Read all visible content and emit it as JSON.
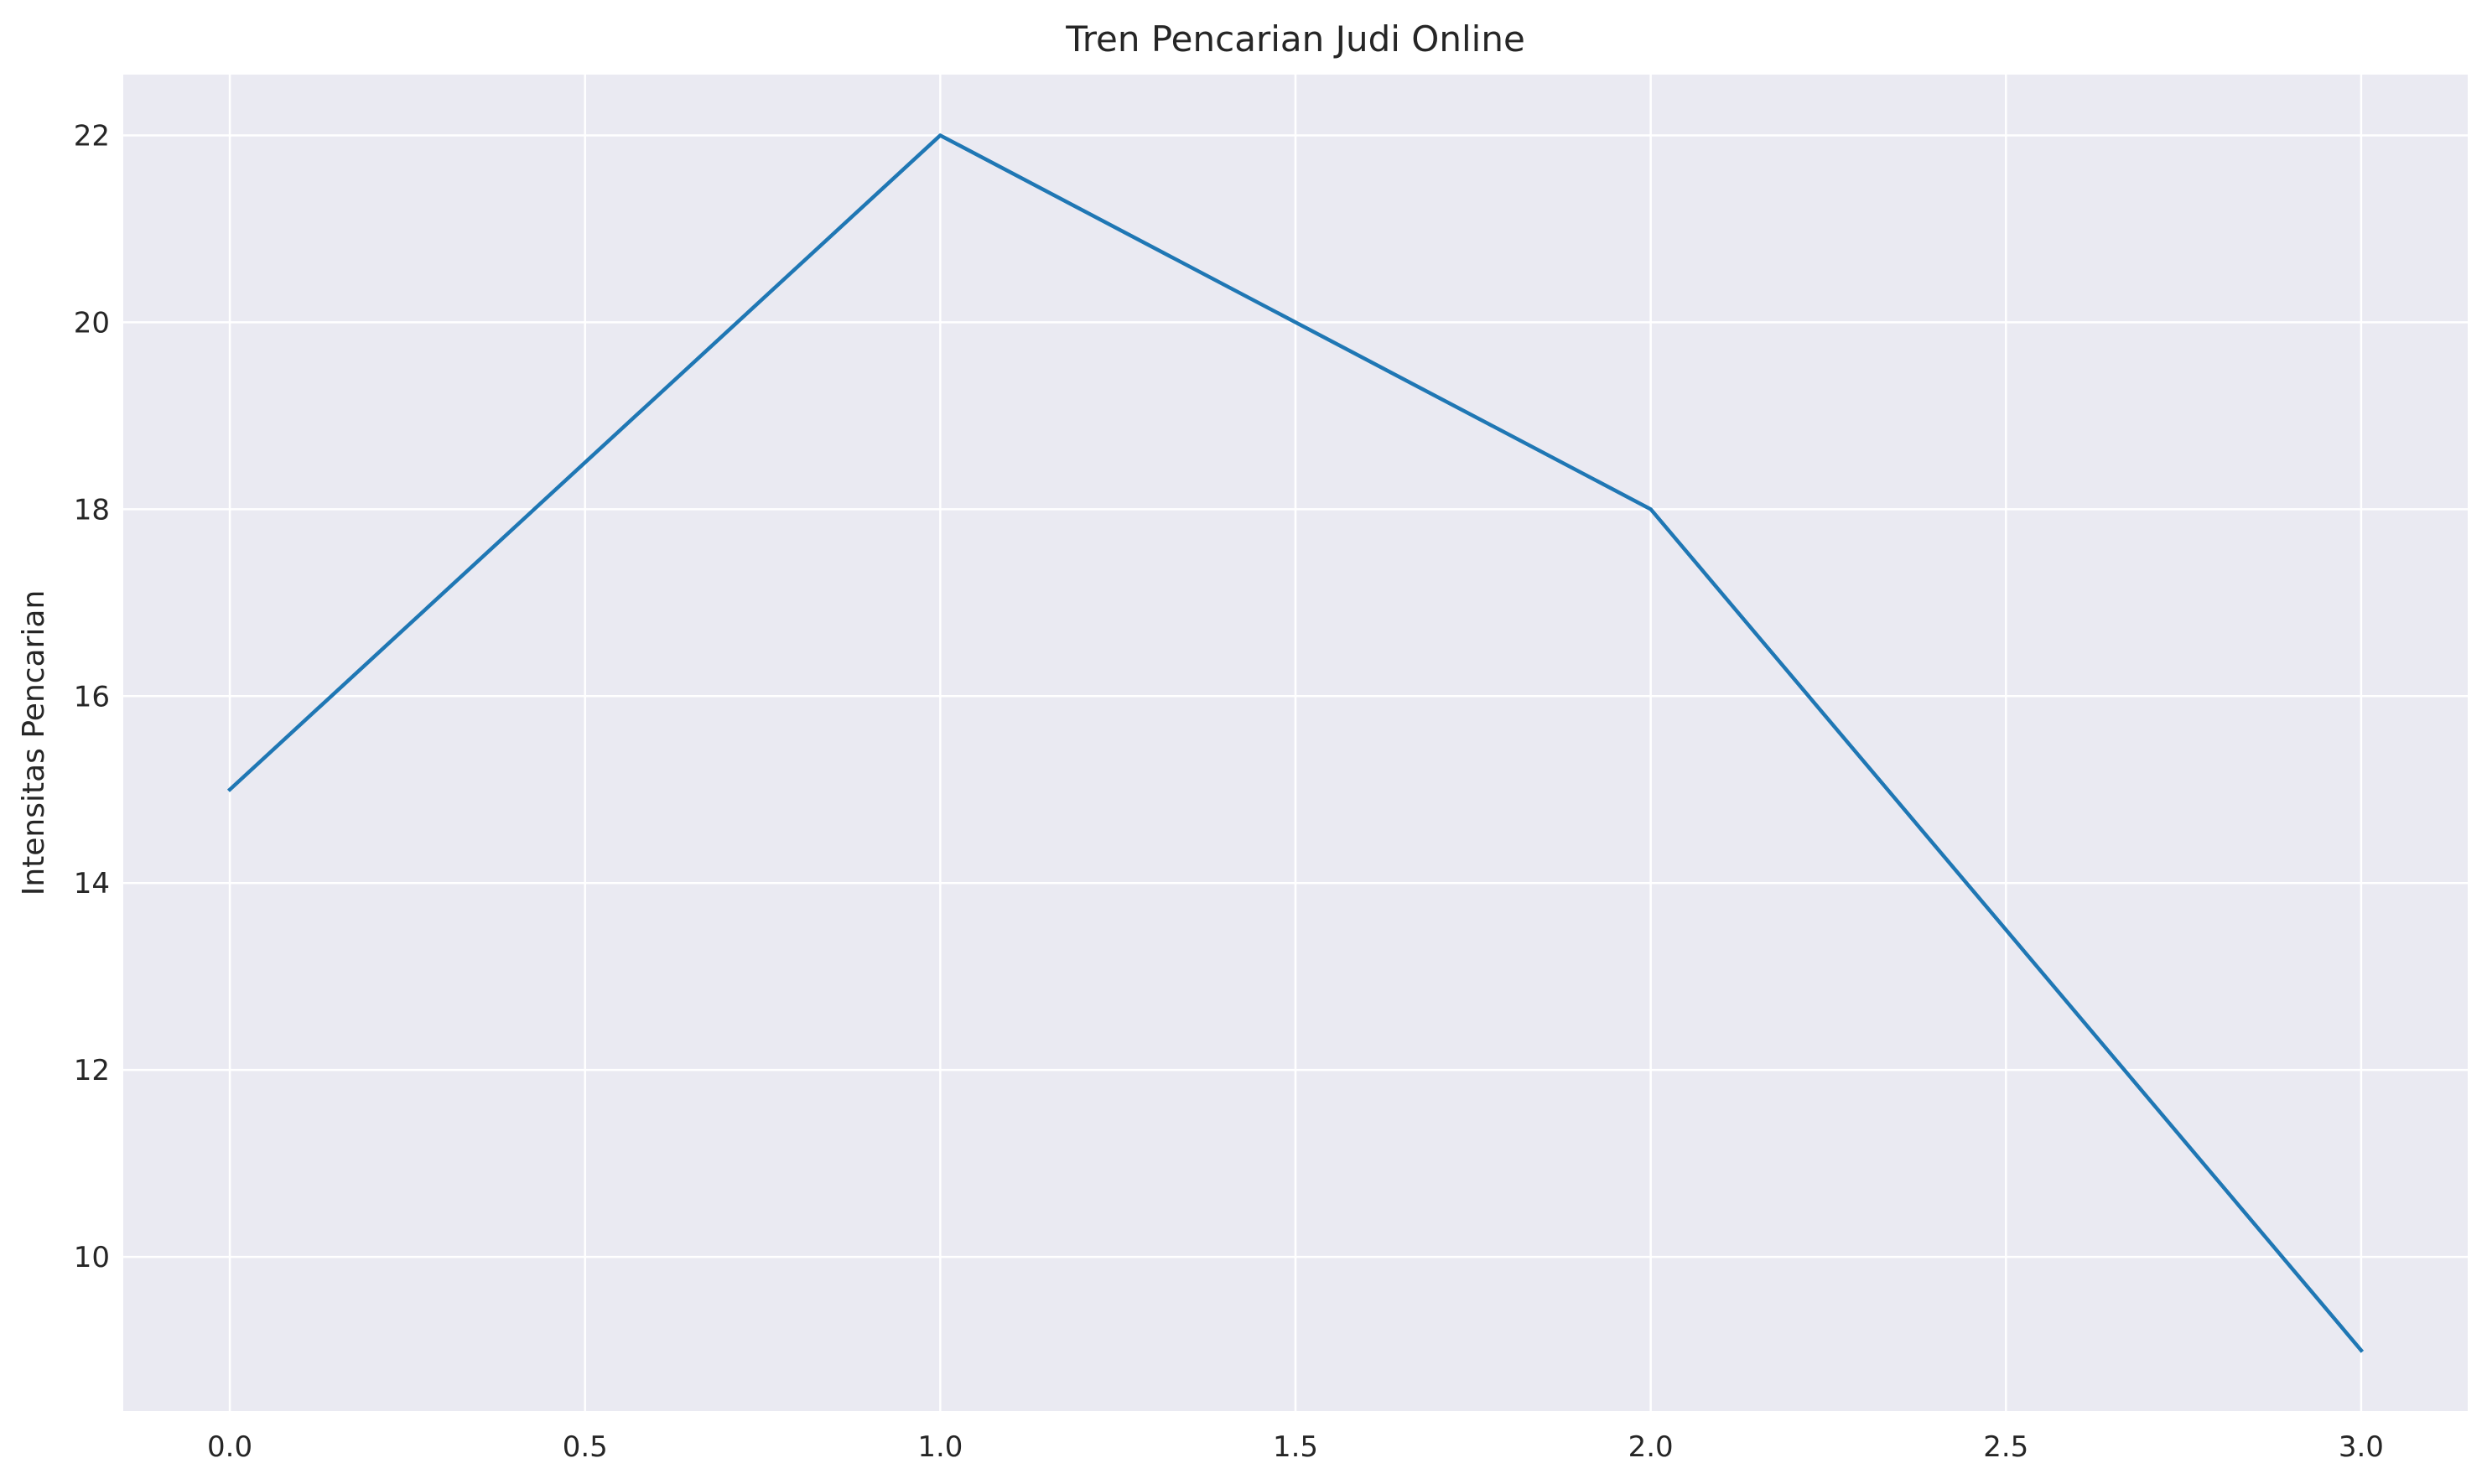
{
  "chart_data": {
    "type": "line",
    "title": "Tren Pencarian Judi Online",
    "xlabel": "",
    "ylabel": "Intensitas Pencarian",
    "x": [
      0,
      1,
      2,
      3
    ],
    "series": [
      {
        "values": [
          15,
          22,
          18,
          9
        ],
        "color": "#1f77b4"
      }
    ],
    "xlim": [
      -0.15,
      3.15
    ],
    "ylim": [
      8.35,
      22.65
    ],
    "x_ticks": [
      0.0,
      0.5,
      1.0,
      1.5,
      2.0,
      2.5,
      3.0
    ],
    "x_tick_labels": [
      "0.0",
      "0.5",
      "1.0",
      "1.5",
      "2.0",
      "2.5",
      "3.0"
    ],
    "y_ticks": [
      10,
      12,
      14,
      16,
      18,
      20,
      22
    ],
    "y_tick_labels": [
      "10",
      "12",
      "14",
      "16",
      "18",
      "20",
      "22"
    ],
    "grid": true,
    "background_color": "#eaeaf2",
    "grid_color": "#ffffff"
  }
}
